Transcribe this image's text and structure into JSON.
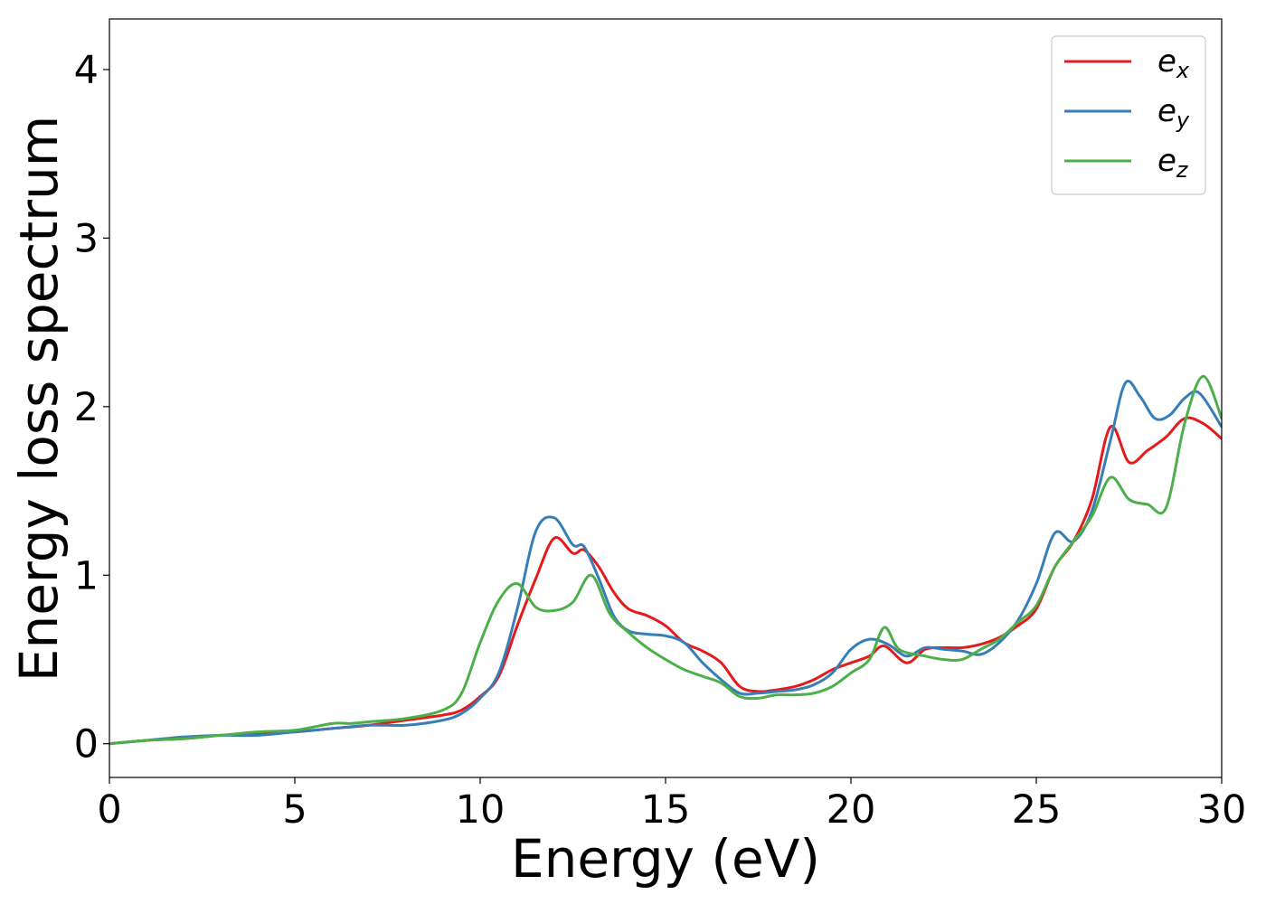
{
  "chart_data": {
    "type": "line",
    "xlabel": "Energy (eV)",
    "ylabel": "Energy loss spectrum",
    "xlim": [
      0,
      30
    ],
    "ylim": [
      -0.2,
      4.3
    ],
    "xticks": [
      0,
      5,
      10,
      15,
      20,
      25,
      30
    ],
    "yticks": [
      0,
      1,
      2,
      3,
      4
    ],
    "grid": false,
    "legend_position": "top-right",
    "series": [
      {
        "name": "e",
        "subscript": "x",
        "color": "#e41a1c",
        "x": [
          0,
          1,
          2,
          3,
          4,
          5,
          6,
          7,
          8,
          9,
          9.5,
          10,
          10.5,
          11,
          11.5,
          12,
          12.5,
          12.8,
          13.2,
          13.6,
          14,
          14.5,
          15,
          15.5,
          16,
          16.5,
          17,
          17.5,
          18,
          18.5,
          19,
          19.5,
          20,
          20.5,
          20.9,
          21.5,
          22,
          22.5,
          23,
          23.5,
          24,
          24.5,
          25,
          25.5,
          26,
          26.5,
          27,
          27.5,
          28,
          28.5,
          29,
          29.5,
          30
        ],
        "y": [
          0.0,
          0.02,
          0.03,
          0.05,
          0.06,
          0.07,
          0.09,
          0.11,
          0.14,
          0.17,
          0.2,
          0.28,
          0.4,
          0.7,
          0.98,
          1.22,
          1.13,
          1.15,
          1.05,
          0.9,
          0.8,
          0.76,
          0.7,
          0.6,
          0.55,
          0.48,
          0.34,
          0.31,
          0.32,
          0.34,
          0.38,
          0.44,
          0.48,
          0.52,
          0.58,
          0.48,
          0.56,
          0.57,
          0.57,
          0.59,
          0.63,
          0.7,
          0.8,
          1.05,
          1.2,
          1.45,
          1.88,
          1.67,
          1.74,
          1.82,
          1.93,
          1.9,
          1.81
        ]
      },
      {
        "name": "e",
        "subscript": "y",
        "color": "#377eb8",
        "x": [
          0,
          1,
          2,
          3,
          4,
          5,
          6,
          7,
          8,
          9,
          9.5,
          10,
          10.5,
          11,
          11.5,
          12,
          12.5,
          12.8,
          13.2,
          13.6,
          14,
          14.5,
          15,
          15.5,
          16,
          16.5,
          17,
          17.5,
          18,
          18.5,
          19,
          19.5,
          20,
          20.5,
          21,
          21.5,
          22,
          22.5,
          23,
          23.5,
          24,
          24.5,
          25,
          25.5,
          26,
          26.5,
          27,
          27.4,
          27.8,
          28.2,
          28.6,
          29,
          29.4,
          30
        ],
        "y": [
          0.0,
          0.02,
          0.04,
          0.05,
          0.05,
          0.07,
          0.09,
          0.11,
          0.11,
          0.14,
          0.18,
          0.27,
          0.42,
          0.8,
          1.26,
          1.34,
          1.18,
          1.17,
          0.98,
          0.76,
          0.67,
          0.65,
          0.64,
          0.6,
          0.48,
          0.38,
          0.3,
          0.3,
          0.31,
          0.32,
          0.35,
          0.42,
          0.56,
          0.62,
          0.59,
          0.52,
          0.57,
          0.56,
          0.55,
          0.53,
          0.6,
          0.73,
          0.95,
          1.25,
          1.2,
          1.38,
          1.8,
          2.14,
          2.06,
          1.93,
          1.95,
          2.05,
          2.08,
          1.88
        ]
      },
      {
        "name": "e",
        "subscript": "z",
        "color": "#4daf4a",
        "x": [
          0,
          1,
          2,
          3,
          4,
          5,
          6,
          6.5,
          7,
          8,
          9,
          9.5,
          10,
          10.5,
          11,
          11.5,
          12,
          12.5,
          13,
          13.5,
          14,
          14.5,
          15,
          15.5,
          16,
          16.5,
          17,
          17.5,
          18,
          18.5,
          19,
          19.5,
          20,
          20.5,
          20.9,
          21.3,
          22,
          22.5,
          23,
          23.5,
          24,
          24.5,
          25,
          25.5,
          26,
          26.5,
          27,
          27.5,
          28,
          28.5,
          29,
          29.5,
          30
        ],
        "y": [
          0.0,
          0.02,
          0.03,
          0.05,
          0.07,
          0.08,
          0.12,
          0.12,
          0.13,
          0.15,
          0.2,
          0.3,
          0.6,
          0.85,
          0.95,
          0.81,
          0.79,
          0.84,
          1.0,
          0.77,
          0.66,
          0.57,
          0.5,
          0.44,
          0.4,
          0.36,
          0.28,
          0.27,
          0.29,
          0.29,
          0.3,
          0.34,
          0.42,
          0.5,
          0.69,
          0.56,
          0.52,
          0.5,
          0.5,
          0.56,
          0.62,
          0.72,
          0.82,
          1.05,
          1.2,
          1.35,
          1.58,
          1.45,
          1.42,
          1.4,
          1.9,
          2.18,
          1.93
        ]
      }
    ]
  }
}
